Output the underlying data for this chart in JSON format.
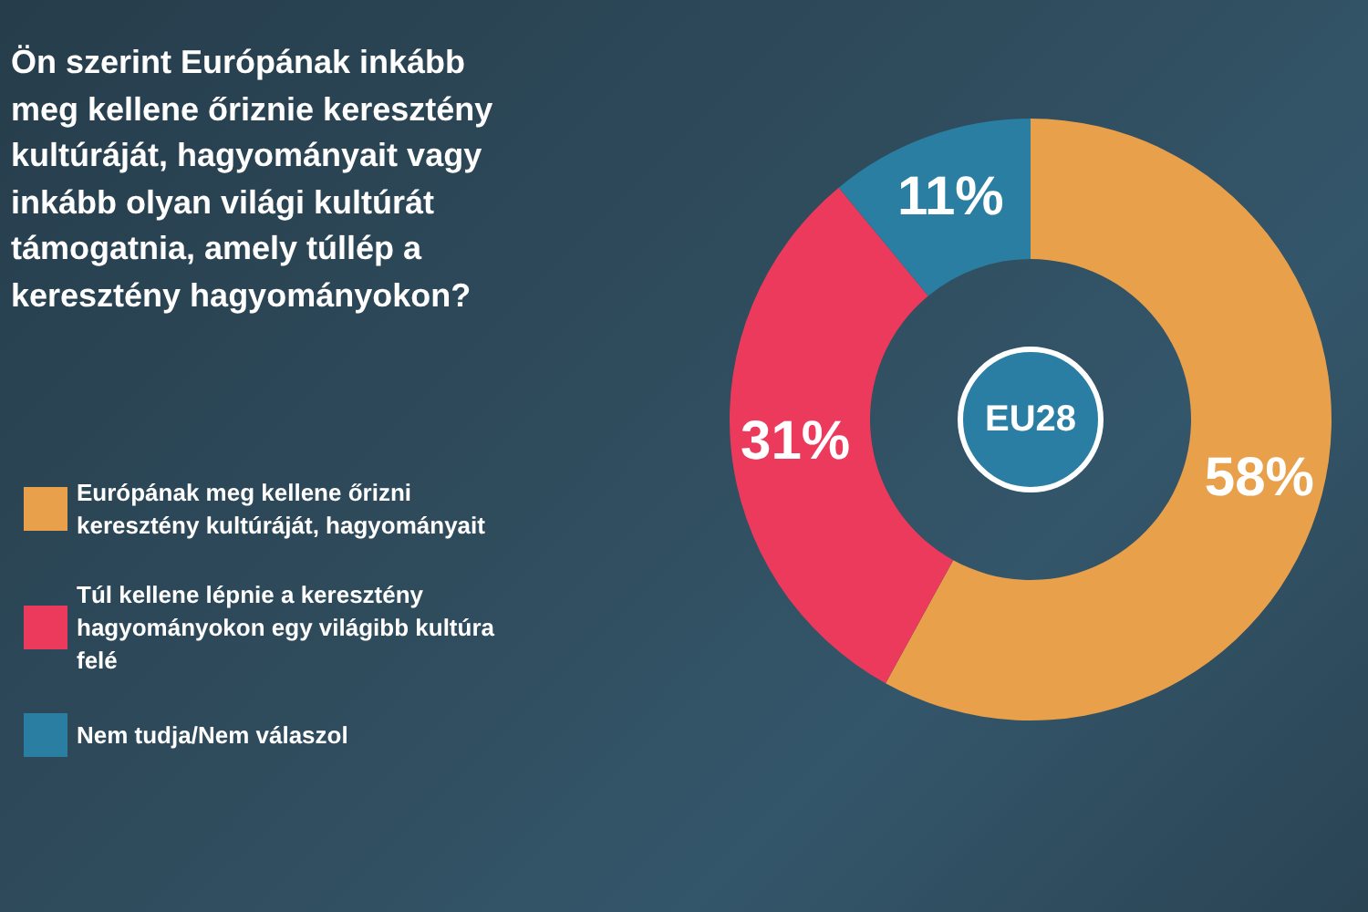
{
  "chart_data": {
    "type": "donut",
    "title": "Ön szerint Európának inkább meg kellene őriznie keresztény kultúráját, hagyományait vagy inkább olyan világi kultúrát támogatnia, amely túllép a keresztény hagyományokon?",
    "categories": [
      "Európának meg kellene őrizni keresztény kultúráját, hagyományait",
      "Túl kellene lépnie a keresztény hagyományokon egy világibb kultúra felé",
      "Nem tudja/Nem válaszol"
    ],
    "values": [
      58,
      31,
      11
    ],
    "colors": [
      "#e9a04b",
      "#ec3a5c",
      "#2a7ea2"
    ],
    "value_labels": [
      "58%",
      "31%",
      "11%"
    ],
    "legend": "bottom left",
    "annotations": [
      "EU28"
    ]
  }
}
